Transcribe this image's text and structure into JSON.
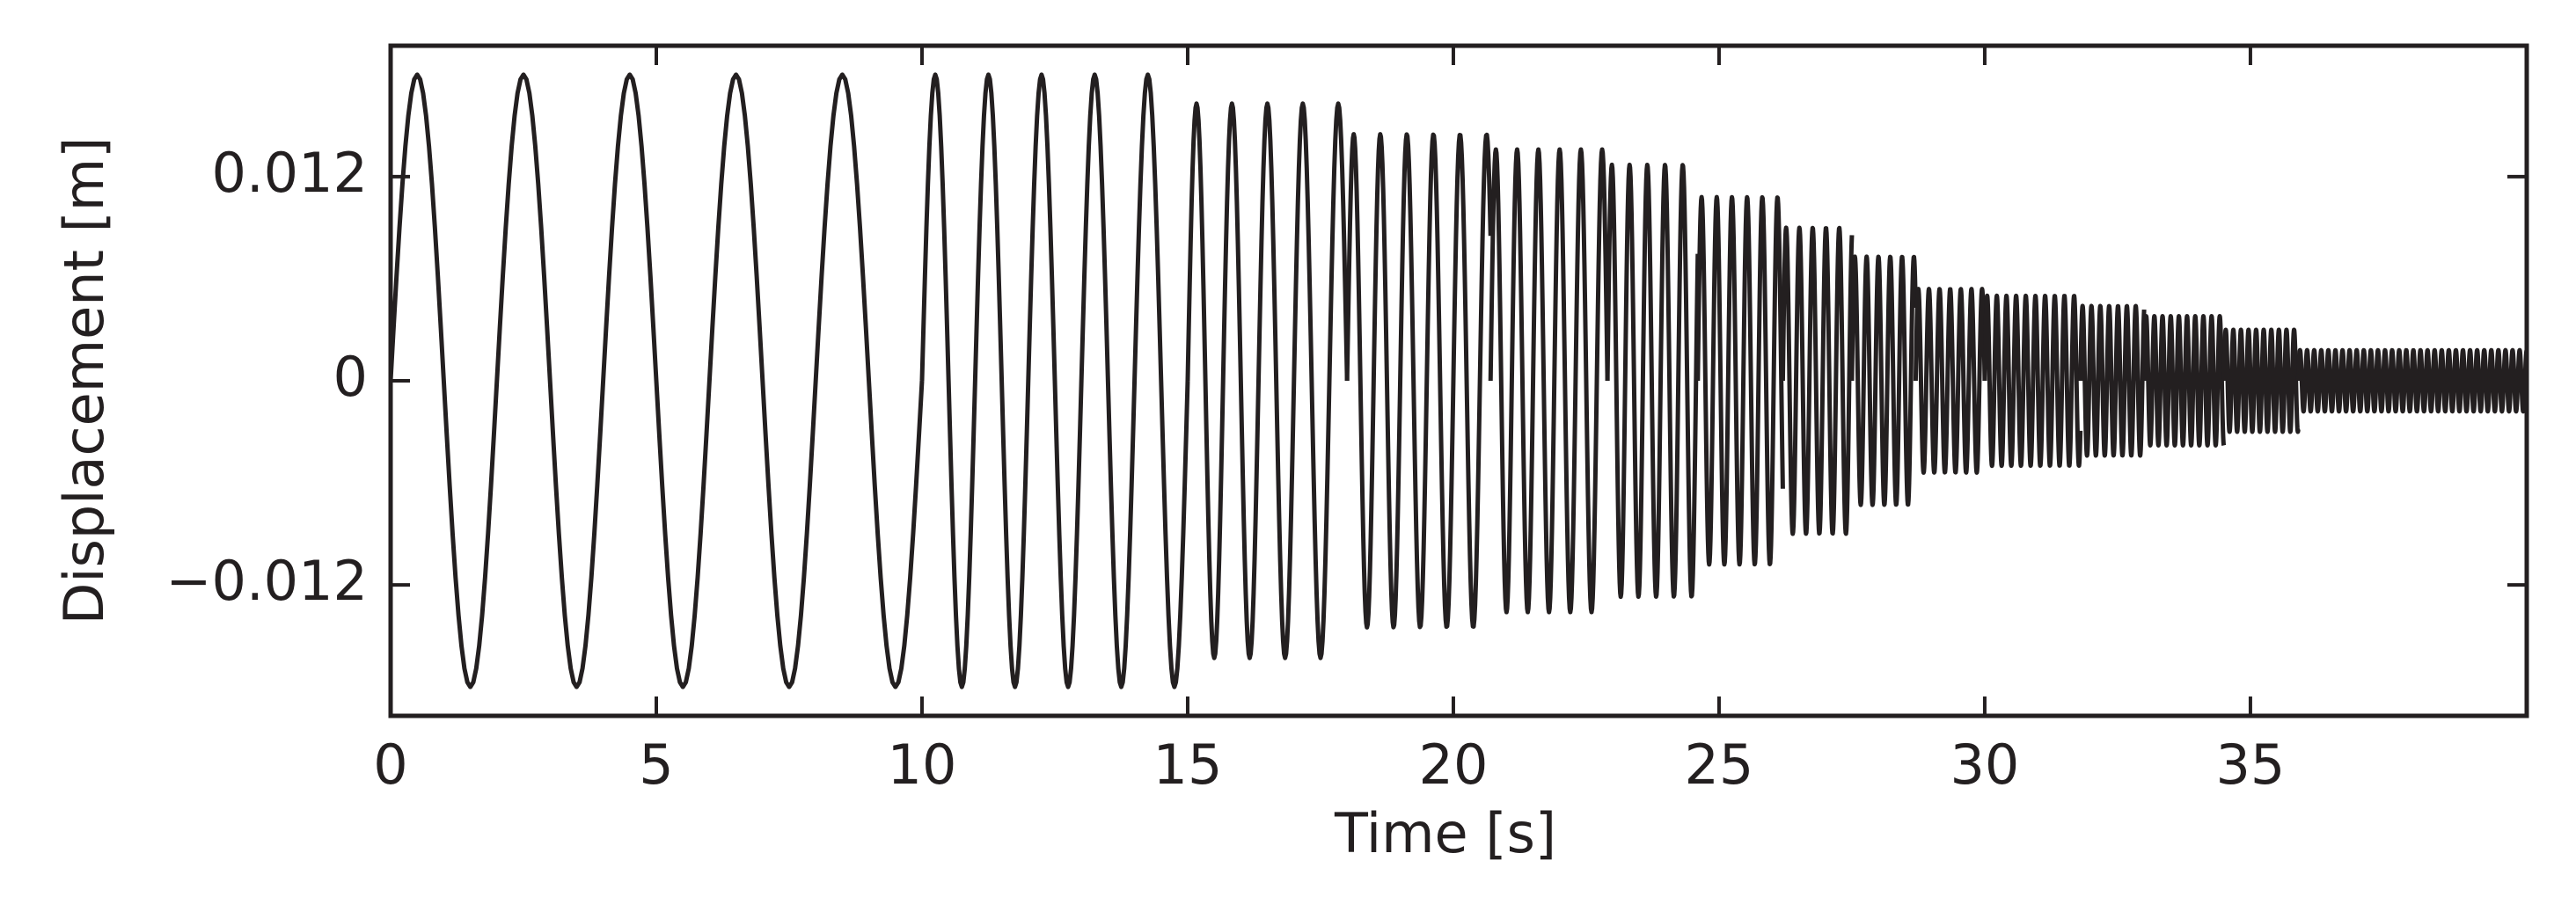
{
  "chart_data": {
    "type": "signal",
    "xlabel": "Time [s]",
    "ylabel": "Displacement [m]",
    "xlim": [
      0,
      40.2
    ],
    "xticks": [
      0,
      5,
      10,
      15,
      20,
      25,
      30,
      35
    ],
    "ylim": [
      -0.0197,
      0.0197
    ],
    "yticks": [
      {
        "value": -0.012,
        "label": "−0.012"
      },
      0,
      0.012
    ],
    "color": "#231f20",
    "segments": [
      {
        "start": 0,
        "end": 10,
        "frequency": 0.5,
        "amplitude": 0.018
      },
      {
        "start": 10,
        "end": 15,
        "frequency": 1,
        "amplitude": 0.018
      },
      {
        "start": 15,
        "end": 18,
        "frequency": 1.5,
        "amplitude": 0.0163
      },
      {
        "start": 18,
        "end": 20.7,
        "frequency": 2,
        "amplitude": 0.0145
      },
      {
        "start": 20.7,
        "end": 22.9,
        "frequency": 2.5,
        "amplitude": 0.0136
      },
      {
        "start": 22.9,
        "end": 24.6,
        "frequency": 3,
        "amplitude": 0.0127
      },
      {
        "start": 24.6,
        "end": 26.2,
        "frequency": 3.5,
        "amplitude": 0.0108
      },
      {
        "start": 26.2,
        "end": 27.5,
        "frequency": 4,
        "amplitude": 0.009
      },
      {
        "start": 27.5,
        "end": 28.7,
        "frequency": 4.5,
        "amplitude": 0.0073
      },
      {
        "start": 28.7,
        "end": 30,
        "frequency": 5,
        "amplitude": 0.0054
      },
      {
        "start": 30,
        "end": 31.8,
        "frequency": 5.5,
        "amplitude": 0.005
      },
      {
        "start": 31.8,
        "end": 33,
        "frequency": 6,
        "amplitude": 0.0044
      },
      {
        "start": 33,
        "end": 34.5,
        "frequency": 6.5,
        "amplitude": 0.0038
      },
      {
        "start": 34.5,
        "end": 35.9,
        "frequency": 7,
        "amplitude": 0.003
      },
      {
        "start": 35.9,
        "end": 40.2,
        "frequency": 7.5,
        "amplitude": 0.0018
      }
    ]
  }
}
